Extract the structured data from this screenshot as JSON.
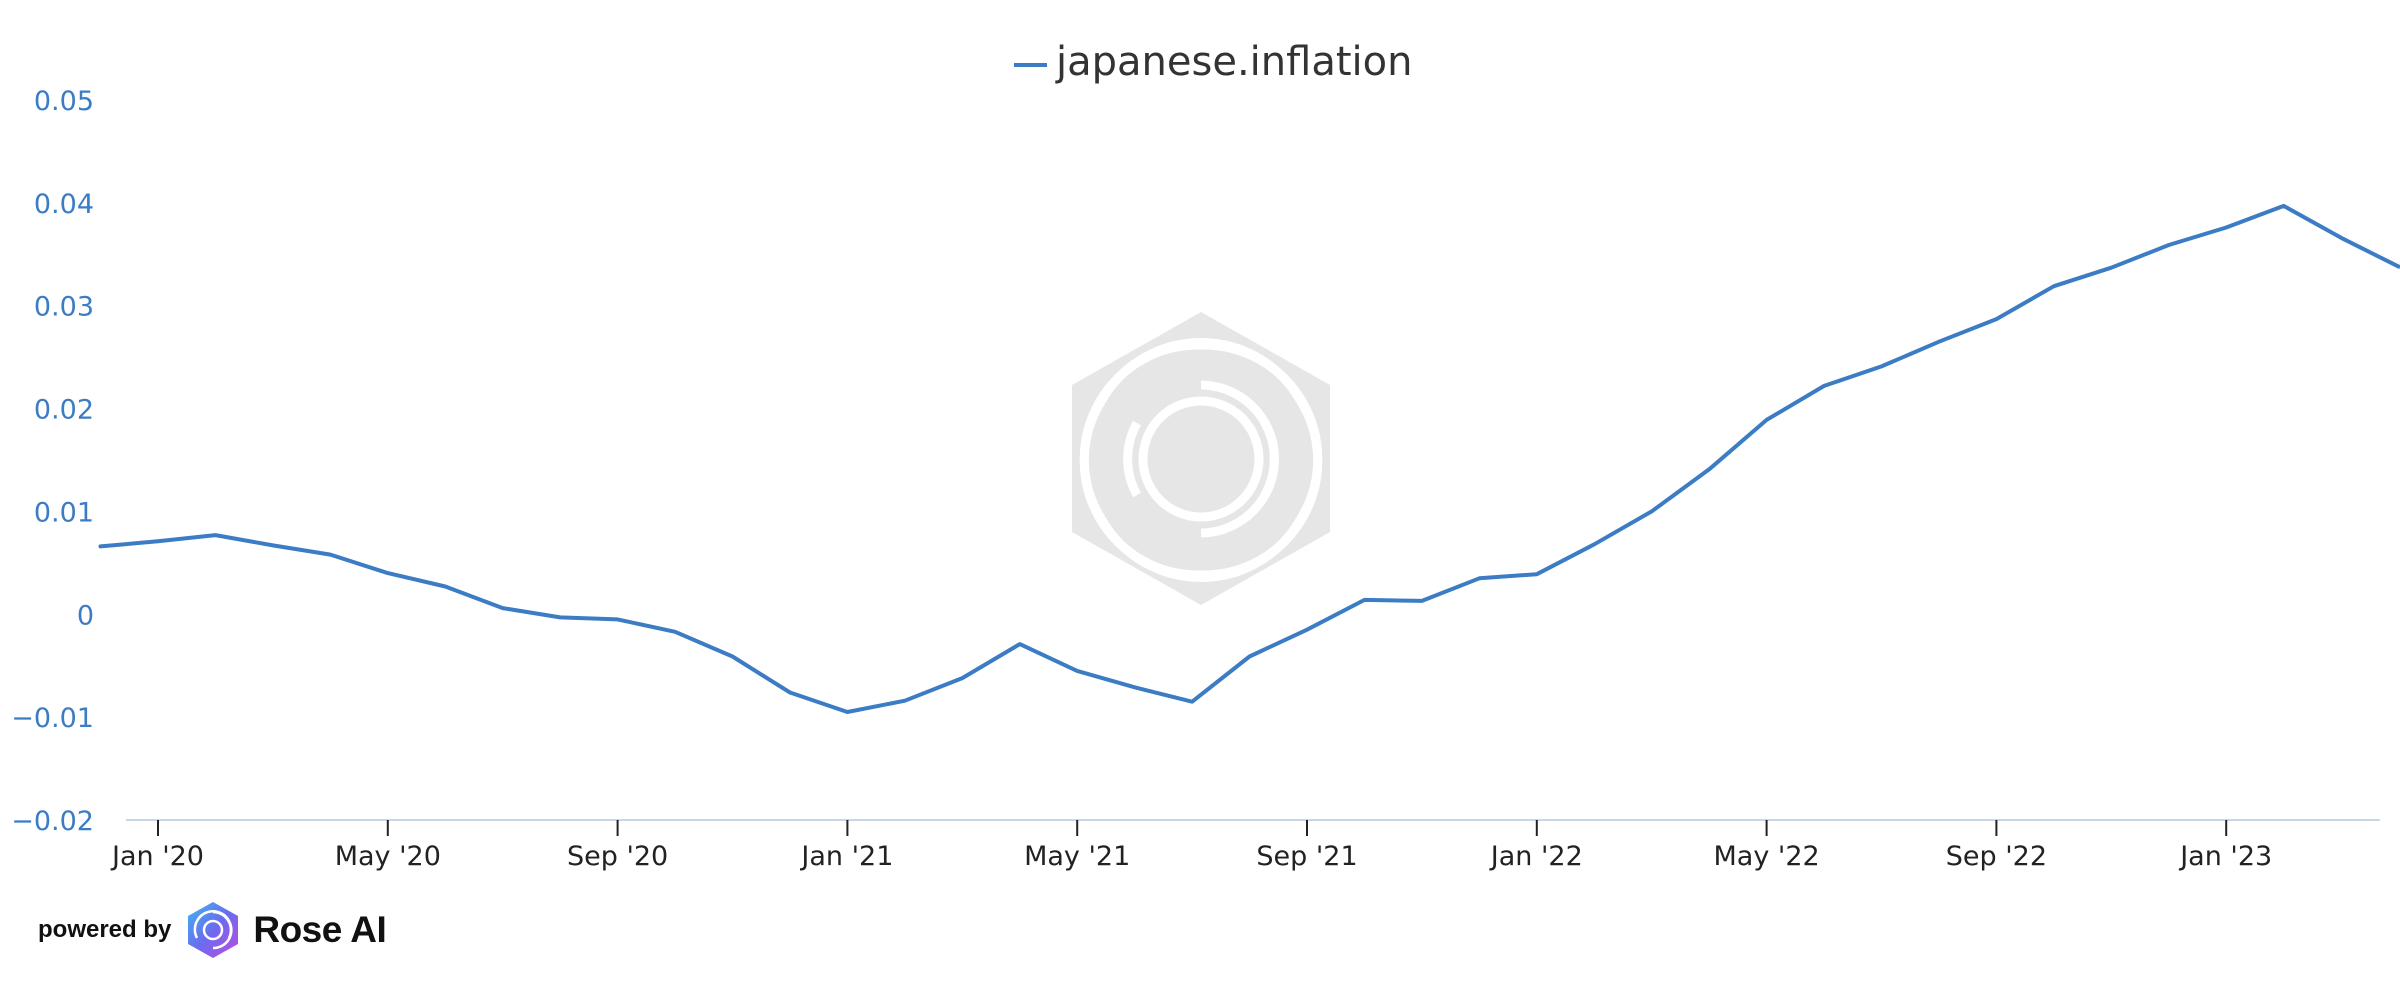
{
  "chart_data": {
    "type": "line",
    "legend_position": "top-center",
    "grid": false,
    "ylim": [
      -0.02,
      0.05
    ],
    "y_ticks": [
      "0.05",
      "0.04",
      "0.03",
      "0.02",
      "0.01",
      "0",
      "−0.01",
      "−0.02"
    ],
    "x_ticks": [
      "Jan '20",
      "May '20",
      "Sep '20",
      "Jan '21",
      "May '21",
      "Sep '21",
      "Jan '22",
      "May '22",
      "Sep '22",
      "Jan '23"
    ],
    "colors": {
      "line": "#3b7cc4",
      "axis": "#c8d7e6",
      "watermark": "#e6e6e6"
    },
    "series": [
      {
        "name": "japanese.inflation",
        "x": [
          "2019-12",
          "2020-01",
          "2020-02",
          "2020-03",
          "2020-04",
          "2020-05",
          "2020-06",
          "2020-07",
          "2020-08",
          "2020-09",
          "2020-10",
          "2020-11",
          "2020-12",
          "2021-01",
          "2021-02",
          "2021-03",
          "2021-04",
          "2021-05",
          "2021-06",
          "2021-07",
          "2021-08",
          "2021-09",
          "2021-10",
          "2021-11",
          "2021-12",
          "2022-01",
          "2022-02",
          "2022-03",
          "2022-04",
          "2022-05",
          "2022-06",
          "2022-07",
          "2022-08",
          "2022-09",
          "2022-10",
          "2022-11",
          "2022-12",
          "2023-01",
          "2023-02",
          "2023-03",
          "2023-04"
        ],
        "values": [
          0.0066,
          0.0071,
          0.0077,
          0.0067,
          0.0058,
          0.004,
          0.0027,
          0.0006,
          -0.0003,
          -0.0005,
          -0.0017,
          -0.0041,
          -0.0076,
          -0.0095,
          -0.0084,
          -0.0062,
          -0.0029,
          -0.0055,
          -0.0071,
          -0.0085,
          -0.0041,
          -0.0015,
          0.0014,
          0.0013,
          0.0035,
          0.0039,
          0.0068,
          0.01,
          0.0141,
          0.0189,
          0.0222,
          0.0241,
          0.0265,
          0.0287,
          0.0319,
          0.0337,
          0.0359,
          0.0376,
          0.0397,
          0.0366,
          0.0338
        ]
      }
    ]
  },
  "footer": {
    "powered_by": "powered by",
    "brand": "Rose AI",
    "logo_icon": "rose-ai-logo-icon"
  }
}
